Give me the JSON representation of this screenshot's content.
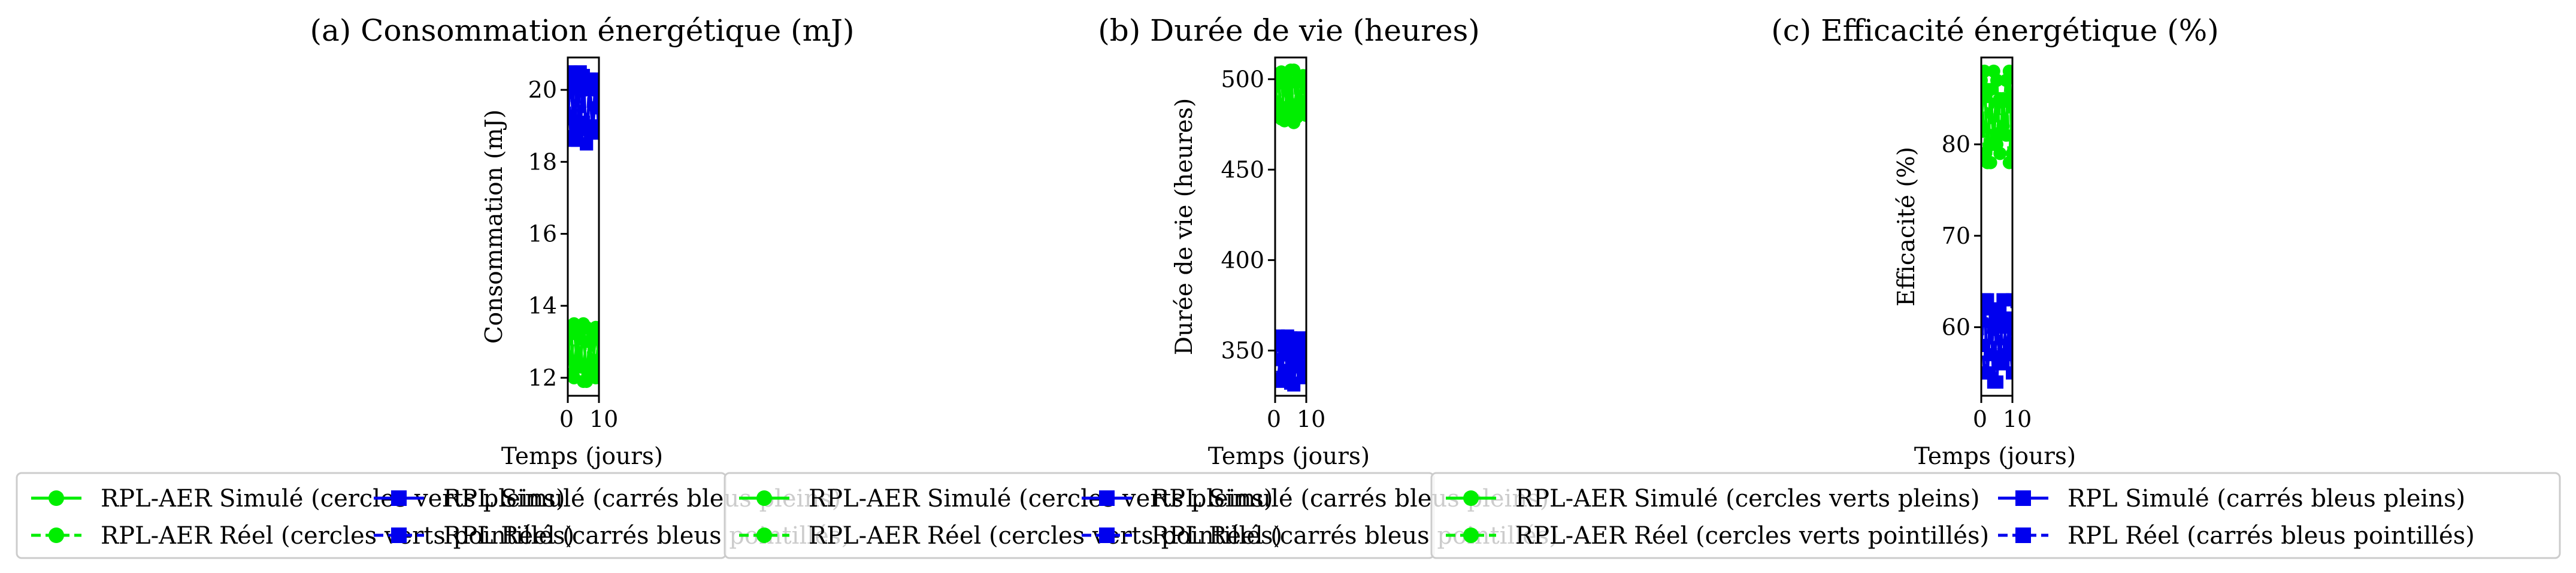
{
  "colors": {
    "rpl_aer": "#00ee00",
    "rpl": "#0000ee"
  },
  "legend": {
    "entries": [
      {
        "label": "RPL-AER Simulé (cercles verts pleins)",
        "color": "#00ee00",
        "marker": "circle",
        "linestyle": "solid"
      },
      {
        "label": "RPL-AER Réel (cercles verts pointillés)",
        "color": "#00ee00",
        "marker": "circle",
        "linestyle": "dashed"
      },
      {
        "label": "RPL Simulé (carrés bleus pleins)",
        "color": "#0000ee",
        "marker": "square",
        "linestyle": "solid"
      },
      {
        "label": "RPL Réel (carrés bleus pointillés)",
        "color": "#0000ee",
        "marker": "square",
        "linestyle": "dashed"
      }
    ],
    "placement": "bottom, one legend per subplot, overlapping"
  },
  "chart_data": [
    {
      "type": "line",
      "title": "(a) Consommation énergétique (mJ)",
      "xlabel": "Temps (jours)",
      "ylabel": "Consommation (mJ)",
      "xticks": [
        "0",
        "10"
      ],
      "yticks": [
        "12",
        "14",
        "16",
        "18",
        "20"
      ],
      "xlim": [
        0,
        10
      ],
      "ylim": [
        11.5,
        20.9
      ],
      "grid": false,
      "series": [
        {
          "name": "RPL-AER Simulé (cercles verts pleins)",
          "color": "#00ee00",
          "marker": "circle",
          "linestyle": "solid",
          "x": [
            0,
            1,
            2,
            3,
            4,
            5,
            6,
            7,
            8,
            9,
            10
          ],
          "y": [
            12.6,
            13.4,
            12.0,
            13.2,
            12.3,
            13.5,
            11.9,
            13.0,
            12.2,
            13.4,
            12.5
          ]
        },
        {
          "name": "RPL-AER Réel (cercles verts pointillés)",
          "color": "#00ee00",
          "marker": "circle",
          "linestyle": "dashed",
          "x": [
            0,
            1,
            2,
            3,
            4,
            5,
            6,
            7,
            8,
            9,
            10
          ],
          "y": [
            13.3,
            12.1,
            13.5,
            12.4,
            13.1,
            11.9,
            13.4,
            12.3,
            13.2,
            12.0,
            13.3
          ]
        },
        {
          "name": "RPL Simulé (carrés bleus pleins)",
          "color": "#0000ee",
          "marker": "square",
          "linestyle": "solid",
          "x": [
            0,
            1,
            2,
            3,
            4,
            5,
            6,
            7,
            8,
            9,
            10
          ],
          "y": [
            19.2,
            20.5,
            18.6,
            20.2,
            18.9,
            20.4,
            18.5,
            20.0,
            19.0,
            20.3,
            18.8
          ]
        },
        {
          "name": "RPL Réel (carrés bleus pointillés)",
          "color": "#0000ee",
          "marker": "square",
          "linestyle": "dashed",
          "x": [
            0,
            1,
            2,
            3,
            4,
            5,
            6,
            7,
            8,
            9,
            10
          ],
          "y": [
            20.4,
            18.7,
            20.1,
            18.6,
            20.5,
            19.1,
            18.5,
            20.3,
            18.8,
            20.2,
            19.5
          ]
        }
      ]
    },
    {
      "type": "line",
      "title": "(b) Durée de vie (heures)",
      "xlabel": "Temps (jours)",
      "ylabel": "Durée de vie (heures)",
      "xticks": [
        "0",
        "10"
      ],
      "yticks": [
        "350",
        "400",
        "450",
        "500"
      ],
      "xlim": [
        0,
        10
      ],
      "ylim": [
        325,
        512
      ],
      "grid": false,
      "series": [
        {
          "name": "RPL-AER Simulé (cercles verts pleins)",
          "color": "#00ee00",
          "marker": "circle",
          "linestyle": "solid",
          "x": [
            0,
            1,
            2,
            3,
            4,
            5,
            6,
            7,
            8,
            9,
            10
          ],
          "y": [
            485,
            503,
            478,
            500,
            482,
            505,
            476,
            498,
            488,
            502,
            480
          ]
        },
        {
          "name": "RPL-AER Réel (cercles verts pointillés)",
          "color": "#00ee00",
          "marker": "circle",
          "linestyle": "dashed",
          "x": [
            0,
            1,
            2,
            3,
            4,
            5,
            6,
            7,
            8,
            9,
            10
          ],
          "y": [
            500,
            480,
            504,
            477,
            497,
            486,
            505,
            479,
            499,
            483,
            495
          ]
        },
        {
          "name": "RPL Simulé (carrés bleus pleins)",
          "color": "#0000ee",
          "marker": "square",
          "linestyle": "solid",
          "x": [
            0,
            1,
            2,
            3,
            4,
            5,
            6,
            7,
            8,
            9,
            10
          ],
          "y": [
            345,
            358,
            333,
            355,
            338,
            357,
            331,
            352,
            341,
            356,
            336
          ]
        },
        {
          "name": "RPL Réel (carrés bleus pointillés)",
          "color": "#0000ee",
          "marker": "square",
          "linestyle": "dashed",
          "x": [
            0,
            1,
            2,
            3,
            4,
            5,
            6,
            7,
            8,
            9,
            10
          ],
          "y": [
            356,
            334,
            353,
            339,
            358,
            332,
            350,
            344,
            357,
            335,
            349
          ]
        }
      ]
    },
    {
      "type": "line",
      "title": "(c) Efficacité énergétique (%)",
      "xlabel": "Temps (jours)",
      "ylabel": "Efficacité (%)",
      "xticks": [
        "0",
        "10"
      ],
      "yticks": [
        "60",
        "70",
        "80"
      ],
      "xlim": [
        0,
        10
      ],
      "ylim": [
        52.5,
        89.5
      ],
      "grid": false,
      "series": [
        {
          "name": "RPL-AER Simulé (cercles verts pleins)",
          "color": "#00ee00",
          "marker": "circle",
          "linestyle": "solid",
          "x": [
            0,
            1,
            2,
            3,
            4,
            5,
            6,
            7,
            8,
            9,
            10
          ],
          "y": [
            82,
            88,
            78,
            86,
            80,
            87,
            79,
            85,
            81,
            88,
            79
          ]
        },
        {
          "name": "RPL-AER Réel (cercles verts pointillés)",
          "color": "#00ee00",
          "marker": "circle",
          "linestyle": "dashed",
          "x": [
            0,
            1,
            2,
            3,
            4,
            5,
            6,
            7,
            8,
            9,
            10
          ],
          "y": [
            87,
            79,
            86,
            78,
            88,
            80,
            85,
            82,
            87,
            78,
            84
          ]
        },
        {
          "name": "RPL Simulé (carrés bleus pleins)",
          "color": "#0000ee",
          "marker": "square",
          "linestyle": "solid",
          "x": [
            0,
            1,
            2,
            3,
            4,
            5,
            6,
            7,
            8,
            9,
            10
          ],
          "y": [
            58,
            63,
            55,
            62,
            54,
            61,
            56,
            63,
            57,
            60,
            55
          ]
        },
        {
          "name": "RPL Réel (carrés bleus pointillés)",
          "color": "#0000ee",
          "marker": "square",
          "linestyle": "dashed",
          "x": [
            0,
            1,
            2,
            3,
            4,
            5,
            6,
            7,
            8,
            9,
            10
          ],
          "y": [
            62,
            55,
            63,
            57,
            60,
            54,
            62,
            56,
            61,
            58,
            63
          ]
        }
      ]
    }
  ]
}
